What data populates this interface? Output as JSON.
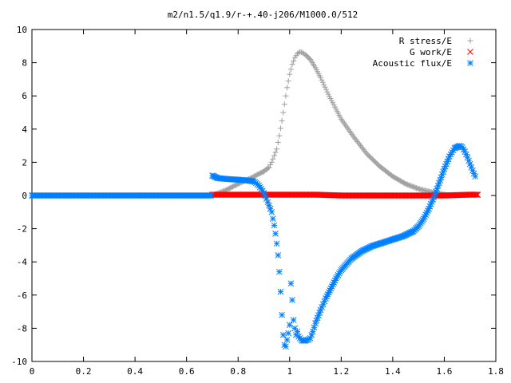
{
  "chart_data": {
    "type": "scatter",
    "title": "m2/n1.5/q1.9/r-+.40-j206/M1000.0/512",
    "xlabel": "",
    "ylabel": "",
    "xlim": [
      0,
      1.8
    ],
    "ylim": [
      -10,
      10
    ],
    "xticks": [
      "0",
      "0.2",
      "0.4",
      "0.6",
      "0.8",
      "1",
      "1.2",
      "1.4",
      "1.6",
      "1.8"
    ],
    "yticks": [
      "10",
      "8",
      "6",
      "4",
      "2",
      "0",
      "-2",
      "-4",
      "-6",
      "-8",
      "-10"
    ],
    "grid": false,
    "legend_position": "top-right",
    "series": [
      {
        "name": "R stress/E",
        "marker": "+",
        "color": "#a0a0a0",
        "x": [
          0.7,
          0.75,
          0.8,
          0.85,
          0.88,
          0.9,
          0.92,
          0.93,
          0.95,
          0.96,
          0.97,
          0.98,
          0.99,
          1.0,
          1.01,
          1.02,
          1.03,
          1.04,
          1.05,
          1.06,
          1.08,
          1.1,
          1.12,
          1.15,
          1.18,
          1.2,
          1.25,
          1.3,
          1.35,
          1.4,
          1.45,
          1.5,
          1.55,
          1.6,
          1.62
        ],
        "y": [
          0.0,
          0.3,
          0.7,
          1.05,
          1.3,
          1.45,
          1.7,
          2.0,
          2.8,
          3.6,
          4.5,
          5.5,
          6.5,
          7.3,
          7.9,
          8.3,
          8.55,
          8.65,
          8.6,
          8.5,
          8.2,
          7.7,
          7.1,
          6.1,
          5.2,
          4.6,
          3.5,
          2.5,
          1.75,
          1.15,
          0.7,
          0.4,
          0.2,
          0.05,
          0.0
        ]
      },
      {
        "name": "G work/E",
        "marker": "x",
        "color": "#ff0000",
        "x": [
          0.7,
          0.8,
          0.9,
          1.0,
          1.1,
          1.2,
          1.3,
          1.4,
          1.5,
          1.6,
          1.7,
          1.73
        ],
        "y": [
          0.05,
          0.05,
          0.05,
          0.05,
          0.05,
          0.0,
          0.0,
          0.0,
          0.0,
          0.0,
          0.05,
          0.05
        ]
      },
      {
        "name": "Acoustic flux/E",
        "marker": "*",
        "color": "#0080ff",
        "x": [
          0.0,
          0.2,
          0.4,
          0.6,
          0.695,
          0.7,
          0.72,
          0.75,
          0.8,
          0.84,
          0.86,
          0.87,
          0.88,
          0.89,
          0.9,
          0.91,
          0.92,
          0.93,
          0.935,
          0.94,
          0.945,
          0.95,
          0.955,
          0.96,
          0.965,
          0.97,
          0.975,
          0.98,
          0.985,
          0.99,
          0.995,
          1.0,
          1.005,
          1.01,
          1.015,
          1.02,
          1.025,
          1.03,
          1.035,
          1.04,
          1.045,
          1.05,
          1.06,
          1.07,
          1.08,
          1.09,
          1.1,
          1.12,
          1.14,
          1.16,
          1.18,
          1.2,
          1.24,
          1.28,
          1.32,
          1.36,
          1.4,
          1.44,
          1.48,
          1.5,
          1.52,
          1.54,
          1.56,
          1.58,
          1.6,
          1.62,
          1.64,
          1.66,
          1.67,
          1.68,
          1.69,
          1.7,
          1.71,
          1.72
        ],
        "y": [
          0.0,
          0.0,
          0.0,
          0.0,
          0.0,
          1.2,
          1.05,
          1.0,
          0.95,
          0.9,
          0.85,
          0.75,
          0.6,
          0.4,
          0.15,
          -0.2,
          -0.6,
          -1.0,
          -1.4,
          -1.8,
          -2.3,
          -2.9,
          -3.6,
          -4.6,
          -5.8,
          -7.2,
          -8.4,
          -9.0,
          -9.1,
          -8.7,
          -8.3,
          -7.8,
          -5.3,
          -6.3,
          -7.5,
          -8.0,
          -8.4,
          -8.2,
          -8.5,
          -8.6,
          -8.7,
          -8.75,
          -8.75,
          -8.7,
          -8.6,
          -8.2,
          -7.7,
          -6.9,
          -6.2,
          -5.6,
          -5.0,
          -4.5,
          -3.8,
          -3.35,
          -3.05,
          -2.85,
          -2.65,
          -2.45,
          -2.15,
          -1.85,
          -1.4,
          -0.8,
          -0.1,
          0.75,
          1.6,
          2.35,
          2.85,
          3.0,
          2.9,
          2.65,
          2.3,
          1.9,
          1.5,
          1.15
        ]
      }
    ]
  }
}
